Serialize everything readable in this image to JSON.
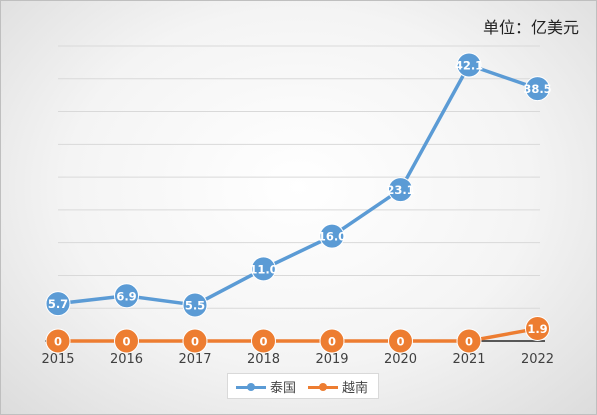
{
  "unit_label": "单位：亿美元",
  "chart_data": {
    "type": "line",
    "title": "",
    "xlabel": "",
    "ylabel": "",
    "categories": [
      "2015",
      "2016",
      "2017",
      "2018",
      "2019",
      "2020",
      "2021",
      "2022"
    ],
    "ylim": [
      0,
      45
    ],
    "grid": true,
    "legend_position": "bottom",
    "series": [
      {
        "name": "泰国",
        "color": "#5b9bd5",
        "values": [
          5.7,
          6.9,
          5.5,
          11.0,
          16.0,
          23.1,
          42.1,
          38.5
        ],
        "labels": [
          "5.7",
          "6.9",
          "5.5",
          "11.0",
          "16.0",
          "23.1",
          "42.1",
          "38.5"
        ]
      },
      {
        "name": "越南",
        "color": "#ed7d31",
        "values": [
          0,
          0,
          0,
          0,
          0,
          0,
          0,
          1.9
        ],
        "labels": [
          "0",
          "0",
          "0",
          "0",
          "0",
          "0",
          "0",
          "1.9"
        ]
      }
    ]
  }
}
